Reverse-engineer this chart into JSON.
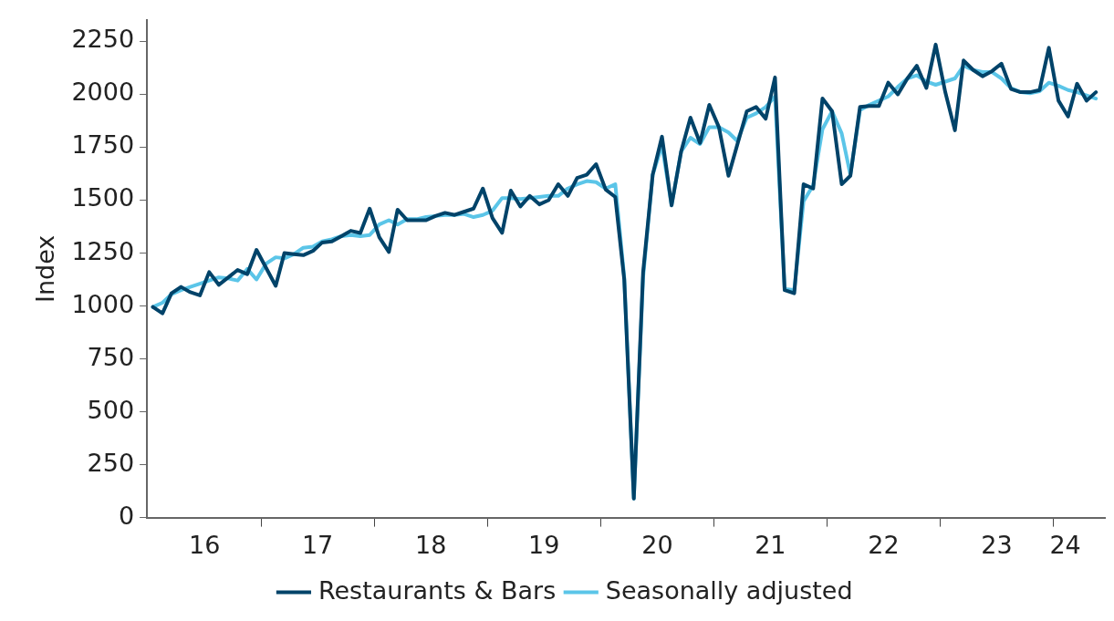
{
  "chart_data": {
    "type": "line",
    "ylabel": "Index",
    "legend": "bottom",
    "marker": "none",
    "line_style": "solid",
    "x": [
      "2016-01",
      "2016-02",
      "2016-03",
      "2016-04",
      "2016-05",
      "2016-06",
      "2016-07",
      "2016-08",
      "2016-09",
      "2016-10",
      "2016-11",
      "2016-12",
      "2017-01",
      "2017-02",
      "2017-03",
      "2017-04",
      "2017-05",
      "2017-06",
      "2017-07",
      "2017-08",
      "2017-09",
      "2017-10",
      "2017-11",
      "2017-12",
      "2018-01",
      "2018-02",
      "2018-03",
      "2018-04",
      "2018-05",
      "2018-06",
      "2018-07",
      "2018-08",
      "2018-09",
      "2018-10",
      "2018-11",
      "2018-12",
      "2019-01",
      "2019-02",
      "2019-03",
      "2019-04",
      "2019-05",
      "2019-06",
      "2019-07",
      "2019-08",
      "2019-09",
      "2019-10",
      "2019-11",
      "2019-12",
      "2020-01",
      "2020-02",
      "2020-03",
      "2020-04",
      "2020-05",
      "2020-06",
      "2020-07",
      "2020-08",
      "2020-09",
      "2020-10",
      "2020-11",
      "2020-12",
      "2021-01",
      "2021-02",
      "2021-03",
      "2021-04",
      "2021-05",
      "2021-06",
      "2021-07",
      "2021-08",
      "2021-09",
      "2021-10",
      "2021-11",
      "2021-12",
      "2022-01",
      "2022-02",
      "2022-03",
      "2022-04",
      "2022-05",
      "2022-06",
      "2022-07",
      "2022-08",
      "2022-09",
      "2022-10",
      "2022-11",
      "2022-12",
      "2023-01",
      "2023-02",
      "2023-03",
      "2023-04",
      "2023-05",
      "2023-06",
      "2023-07",
      "2023-08",
      "2023-09",
      "2023-10",
      "2023-11",
      "2023-12",
      "2024-01",
      "2024-02",
      "2024-03",
      "2024-04",
      "2024-05"
    ],
    "xlim": [
      "2015-12-13",
      "2024-05-30"
    ],
    "xticks": [
      {
        "value": "2016-06-16",
        "label": "16"
      },
      {
        "value": "2016-12-16",
        "label": null
      },
      {
        "value": "2017-06-16",
        "label": "17"
      },
      {
        "value": "2017-12-16",
        "label": null
      },
      {
        "value": "2018-06-16",
        "label": "18"
      },
      {
        "value": "2018-12-16",
        "label": null
      },
      {
        "value": "2019-06-16",
        "label": "19"
      },
      {
        "value": "2019-12-16",
        "label": null
      },
      {
        "value": "2020-06-16",
        "label": "20"
      },
      {
        "value": "2020-12-16",
        "label": null
      },
      {
        "value": "2021-06-16",
        "label": "21"
      },
      {
        "value": "2021-12-16",
        "label": null
      },
      {
        "value": "2022-06-16",
        "label": "22"
      },
      {
        "value": "2022-12-16",
        "label": null
      },
      {
        "value": "2023-06-16",
        "label": "23"
      },
      {
        "value": "2023-12-16",
        "label": null
      },
      {
        "value": "2024-01-23",
        "label": "24"
      }
    ],
    "ylim": [
      0,
      2350
    ],
    "yticks": [
      0,
      250,
      500,
      750,
      1000,
      1250,
      1500,
      1750,
      2000,
      2250
    ],
    "series": [
      {
        "name": "Restaurants & Bars",
        "color": "#004369",
        "values": [
          995,
          965,
          1060,
          1090,
          1065,
          1050,
          1160,
          1100,
          1135,
          1170,
          1150,
          1265,
          1180,
          1095,
          1250,
          1245,
          1240,
          1260,
          1300,
          1305,
          1330,
          1355,
          1345,
          1460,
          1325,
          1255,
          1455,
          1405,
          1405,
          1405,
          1425,
          1440,
          1430,
          1445,
          1460,
          1555,
          1415,
          1345,
          1545,
          1470,
          1520,
          1480,
          1500,
          1575,
          1520,
          1605,
          1620,
          1670,
          1550,
          1515,
          1125,
          90,
          1160,
          1620,
          1800,
          1475,
          1730,
          1890,
          1770,
          1950,
          1845,
          1615,
          1760,
          1920,
          1940,
          1885,
          2080,
          1075,
          1060,
          1575,
          1555,
          1980,
          1920,
          1575,
          1615,
          1940,
          1945,
          1945,
          2055,
          2000,
          2075,
          2135,
          2030,
          2235,
          2010,
          1830,
          2160,
          2115,
          2085,
          2110,
          2145,
          2025,
          2010,
          2010,
          2020,
          2220,
          1970,
          1895,
          2050,
          1970,
          2010
        ]
      },
      {
        "name": "Seasonally adjusted",
        "color": "#5bc5e8",
        "values": [
          995,
          1015,
          1055,
          1075,
          1090,
          1105,
          1120,
          1135,
          1130,
          1120,
          1175,
          1125,
          1200,
          1230,
          1225,
          1245,
          1275,
          1280,
          1305,
          1315,
          1330,
          1335,
          1330,
          1335,
          1385,
          1405,
          1385,
          1410,
          1410,
          1420,
          1425,
          1430,
          1430,
          1435,
          1420,
          1430,
          1450,
          1510,
          1510,
          1505,
          1510,
          1515,
          1520,
          1520,
          1555,
          1575,
          1590,
          1585,
          1555,
          1575,
          1135,
          90,
          1135,
          1620,
          1760,
          1475,
          1730,
          1795,
          1765,
          1845,
          1845,
          1820,
          1780,
          1890,
          1910,
          1940,
          1990,
          1080,
          1075,
          1495,
          1570,
          1835,
          1920,
          1815,
          1620,
          1925,
          1950,
          1970,
          1990,
          2035,
          2075,
          2090,
          2060,
          2045,
          2060,
          2075,
          2135,
          2115,
          2105,
          2105,
          2075,
          2030,
          2010,
          2005,
          2015,
          2055,
          2040,
          2020,
          2010,
          1995,
          1980
        ]
      }
    ]
  }
}
